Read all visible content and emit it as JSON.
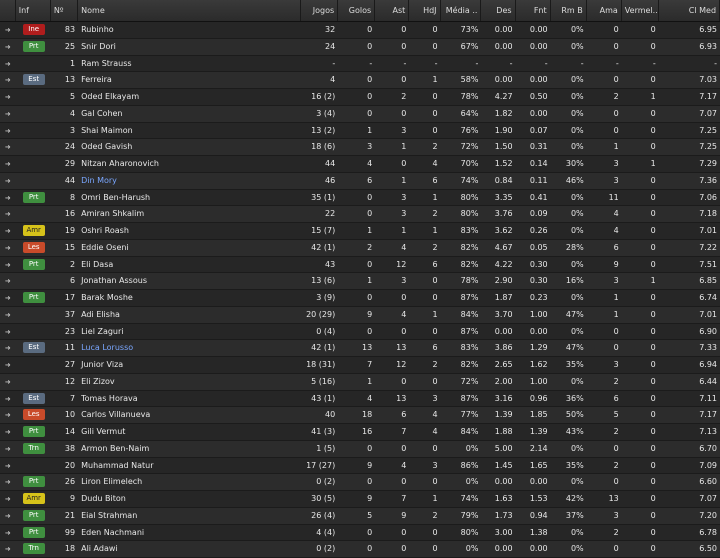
{
  "columns": {
    "inf": "Inf",
    "num": "Nº",
    "name": "Nome",
    "jogos": "Jogos",
    "golos": "Golos",
    "ast": "Ast",
    "hdj": "HdJ",
    "media": "Média ..",
    "des": "Des",
    "fnt": "Fnt",
    "rmb": "Rm B",
    "ama": "Ama",
    "vermel": "Vermel..",
    "clmed": "Cl Med"
  },
  "badge_colors": {
    "Ine": "#b01d1d",
    "Prt": "#3f8f3f",
    "Est": "#5a6b80",
    "Amr": "#d6c21a",
    "Les": "#c94b2a",
    "Trn": "#3f8f3f"
  },
  "rows": [
    {
      "inf": "Ine",
      "num": "83",
      "name": "Rubinho",
      "jogos": "32",
      "golos": "0",
      "ast": "0",
      "hdj": "0",
      "media": "73%",
      "des": "0.00",
      "fnt": "0.00",
      "rmb": "0%",
      "ama": "0",
      "ver": "0",
      "cl": "6.95",
      "link": false
    },
    {
      "inf": "Prt",
      "num": "25",
      "name": "Snir Dori",
      "jogos": "24",
      "golos": "0",
      "ast": "0",
      "hdj": "0",
      "media": "67%",
      "des": "0.00",
      "fnt": "0.00",
      "rmb": "0%",
      "ama": "0",
      "ver": "0",
      "cl": "6.93",
      "link": false
    },
    {
      "inf": "",
      "num": "1",
      "name": "Ram Strauss",
      "jogos": "-",
      "golos": "-",
      "ast": "-",
      "hdj": "-",
      "media": "-",
      "des": "-",
      "fnt": "-",
      "rmb": "-",
      "ama": "-",
      "ver": "-",
      "cl": "-",
      "link": false
    },
    {
      "inf": "Est",
      "num": "13",
      "name": "Ferreira",
      "jogos": "4",
      "golos": "0",
      "ast": "0",
      "hdj": "1",
      "media": "58%",
      "des": "0.00",
      "fnt": "0.00",
      "rmb": "0%",
      "ama": "0",
      "ver": "0",
      "cl": "7.03",
      "link": false
    },
    {
      "inf": "",
      "num": "5",
      "name": "Oded Elkayam",
      "jogos": "16 (2)",
      "golos": "0",
      "ast": "2",
      "hdj": "0",
      "media": "78%",
      "des": "4.27",
      "fnt": "0.50",
      "rmb": "0%",
      "ama": "2",
      "ver": "1",
      "cl": "7.17",
      "link": false
    },
    {
      "inf": "",
      "num": "4",
      "name": "Gal Cohen",
      "jogos": "3 (4)",
      "golos": "0",
      "ast": "0",
      "hdj": "0",
      "media": "64%",
      "des": "1.82",
      "fnt": "0.00",
      "rmb": "0%",
      "ama": "0",
      "ver": "0",
      "cl": "7.07",
      "link": false
    },
    {
      "inf": "",
      "num": "3",
      "name": "Shai Maimon",
      "jogos": "13 (2)",
      "golos": "1",
      "ast": "3",
      "hdj": "0",
      "media": "76%",
      "des": "1.90",
      "fnt": "0.07",
      "rmb": "0%",
      "ama": "0",
      "ver": "0",
      "cl": "7.25",
      "link": false
    },
    {
      "inf": "",
      "num": "24",
      "name": "Oded Gavish",
      "jogos": "18 (6)",
      "golos": "3",
      "ast": "1",
      "hdj": "2",
      "media": "72%",
      "des": "1.50",
      "fnt": "0.31",
      "rmb": "0%",
      "ama": "1",
      "ver": "0",
      "cl": "7.25",
      "link": false
    },
    {
      "inf": "",
      "num": "29",
      "name": "Nitzan Aharonovich",
      "jogos": "44",
      "golos": "4",
      "ast": "0",
      "hdj": "4",
      "media": "70%",
      "des": "1.52",
      "fnt": "0.14",
      "rmb": "30%",
      "ama": "3",
      "ver": "1",
      "cl": "7.29",
      "link": false
    },
    {
      "inf": "",
      "num": "44",
      "name": "Din Mory",
      "jogos": "46",
      "golos": "6",
      "ast": "1",
      "hdj": "6",
      "media": "74%",
      "des": "0.84",
      "fnt": "0.11",
      "rmb": "46%",
      "ama": "3",
      "ver": "0",
      "cl": "7.36",
      "link": true
    },
    {
      "inf": "Prt",
      "num": "8",
      "name": "Omri Ben-Harush",
      "jogos": "35 (1)",
      "golos": "0",
      "ast": "3",
      "hdj": "1",
      "media": "80%",
      "des": "3.35",
      "fnt": "0.41",
      "rmb": "0%",
      "ama": "11",
      "ver": "0",
      "cl": "7.06",
      "link": false
    },
    {
      "inf": "",
      "num": "16",
      "name": "Amiran Shkalim",
      "jogos": "22",
      "golos": "0",
      "ast": "3",
      "hdj": "2",
      "media": "80%",
      "des": "3.76",
      "fnt": "0.09",
      "rmb": "0%",
      "ama": "4",
      "ver": "0",
      "cl": "7.18",
      "link": false
    },
    {
      "inf": "Amr",
      "num": "19",
      "name": "Oshri Roash",
      "jogos": "15 (7)",
      "golos": "1",
      "ast": "1",
      "hdj": "1",
      "media": "83%",
      "des": "3.62",
      "fnt": "0.26",
      "rmb": "0%",
      "ama": "4",
      "ver": "0",
      "cl": "7.01",
      "link": false
    },
    {
      "inf": "Les",
      "num": "15",
      "name": "Eddie Oseni",
      "jogos": "42 (1)",
      "golos": "2",
      "ast": "4",
      "hdj": "2",
      "media": "82%",
      "des": "4.67",
      "fnt": "0.05",
      "rmb": "28%",
      "ama": "6",
      "ver": "0",
      "cl": "7.22",
      "link": false
    },
    {
      "inf": "Prt",
      "num": "2",
      "name": "Eli Dasa",
      "jogos": "43",
      "golos": "0",
      "ast": "12",
      "hdj": "6",
      "media": "82%",
      "des": "4.22",
      "fnt": "0.30",
      "rmb": "0%",
      "ama": "9",
      "ver": "0",
      "cl": "7.51",
      "link": false
    },
    {
      "inf": "",
      "num": "6",
      "name": "Jonathan Assous",
      "jogos": "13 (6)",
      "golos": "1",
      "ast": "3",
      "hdj": "0",
      "media": "78%",
      "des": "2.90",
      "fnt": "0.30",
      "rmb": "16%",
      "ama": "3",
      "ver": "1",
      "cl": "6.85",
      "link": false
    },
    {
      "inf": "Prt",
      "num": "17",
      "name": "Barak Moshe",
      "jogos": "3 (9)",
      "golos": "0",
      "ast": "0",
      "hdj": "0",
      "media": "87%",
      "des": "1.87",
      "fnt": "0.23",
      "rmb": "0%",
      "ama": "1",
      "ver": "0",
      "cl": "6.74",
      "link": false
    },
    {
      "inf": "",
      "num": "37",
      "name": "Adi Elisha",
      "jogos": "20 (29)",
      "golos": "9",
      "ast": "4",
      "hdj": "1",
      "media": "84%",
      "des": "3.70",
      "fnt": "1.00",
      "rmb": "47%",
      "ama": "1",
      "ver": "0",
      "cl": "7.01",
      "link": false
    },
    {
      "inf": "",
      "num": "23",
      "name": "Liel Zaguri",
      "jogos": "0 (4)",
      "golos": "0",
      "ast": "0",
      "hdj": "0",
      "media": "87%",
      "des": "0.00",
      "fnt": "0.00",
      "rmb": "0%",
      "ama": "0",
      "ver": "0",
      "cl": "6.90",
      "link": false
    },
    {
      "inf": "Est",
      "num": "11",
      "name": "Luca Lorusso",
      "jogos": "42 (1)",
      "golos": "13",
      "ast": "13",
      "hdj": "6",
      "media": "83%",
      "des": "3.86",
      "fnt": "1.29",
      "rmb": "47%",
      "ama": "0",
      "ver": "0",
      "cl": "7.33",
      "link": true
    },
    {
      "inf": "",
      "num": "27",
      "name": "Junior Viza",
      "jogos": "18 (31)",
      "golos": "7",
      "ast": "12",
      "hdj": "2",
      "media": "82%",
      "des": "2.65",
      "fnt": "1.62",
      "rmb": "35%",
      "ama": "3",
      "ver": "0",
      "cl": "6.94",
      "link": false
    },
    {
      "inf": "",
      "num": "12",
      "name": "Eli Zizov",
      "jogos": "5 (16)",
      "golos": "1",
      "ast": "0",
      "hdj": "0",
      "media": "72%",
      "des": "2.00",
      "fnt": "1.00",
      "rmb": "0%",
      "ama": "2",
      "ver": "0",
      "cl": "6.44",
      "link": false
    },
    {
      "inf": "Est",
      "num": "7",
      "name": "Tomas Horava",
      "jogos": "43 (1)",
      "golos": "4",
      "ast": "13",
      "hdj": "3",
      "media": "87%",
      "des": "3.16",
      "fnt": "0.96",
      "rmb": "36%",
      "ama": "6",
      "ver": "0",
      "cl": "7.11",
      "link": false
    },
    {
      "inf": "Les",
      "num": "10",
      "name": "Carlos Villanueva",
      "jogos": "40",
      "golos": "18",
      "ast": "6",
      "hdj": "4",
      "media": "77%",
      "des": "1.39",
      "fnt": "1.85",
      "rmb": "50%",
      "ama": "5",
      "ver": "0",
      "cl": "7.17",
      "link": false
    },
    {
      "inf": "Prt",
      "num": "14",
      "name": "Gili Vermut",
      "jogos": "41 (3)",
      "golos": "16",
      "ast": "7",
      "hdj": "4",
      "media": "84%",
      "des": "1.88",
      "fnt": "1.39",
      "rmb": "43%",
      "ama": "2",
      "ver": "0",
      "cl": "7.13",
      "link": false
    },
    {
      "inf": "Trn",
      "num": "38",
      "name": "Armon Ben-Naim",
      "jogos": "1 (5)",
      "golos": "0",
      "ast": "0",
      "hdj": "0",
      "media": "0%",
      "des": "5.00",
      "fnt": "2.14",
      "rmb": "0%",
      "ama": "0",
      "ver": "0",
      "cl": "6.70",
      "link": false
    },
    {
      "inf": "",
      "num": "20",
      "name": "Muhammad Natur",
      "jogos": "17 (27)",
      "golos": "9",
      "ast": "4",
      "hdj": "3",
      "media": "86%",
      "des": "1.45",
      "fnt": "1.65",
      "rmb": "35%",
      "ama": "2",
      "ver": "0",
      "cl": "7.09",
      "link": false
    },
    {
      "inf": "Prt",
      "num": "26",
      "name": "Liron Elimelech",
      "jogos": "0 (2)",
      "golos": "0",
      "ast": "0",
      "hdj": "0",
      "media": "0%",
      "des": "0.00",
      "fnt": "0.00",
      "rmb": "0%",
      "ama": "0",
      "ver": "0",
      "cl": "6.60",
      "link": false
    },
    {
      "inf": "Amr",
      "num": "9",
      "name": "Dudu Biton",
      "jogos": "30 (5)",
      "golos": "9",
      "ast": "7",
      "hdj": "1",
      "media": "74%",
      "des": "1.63",
      "fnt": "1.53",
      "rmb": "42%",
      "ama": "13",
      "ver": "0",
      "cl": "7.07",
      "link": false
    },
    {
      "inf": "Prt",
      "num": "21",
      "name": "Eial Strahman",
      "jogos": "26 (4)",
      "golos": "5",
      "ast": "9",
      "hdj": "2",
      "media": "79%",
      "des": "1.73",
      "fnt": "0.94",
      "rmb": "37%",
      "ama": "3",
      "ver": "0",
      "cl": "7.20",
      "link": false
    },
    {
      "inf": "Prt",
      "num": "99",
      "name": "Eden Nachmani",
      "jogos": "4 (4)",
      "golos": "0",
      "ast": "0",
      "hdj": "0",
      "media": "80%",
      "des": "3.00",
      "fnt": "1.38",
      "rmb": "0%",
      "ama": "2",
      "ver": "0",
      "cl": "6.78",
      "link": false
    },
    {
      "inf": "Trn",
      "num": "18",
      "name": "Ali Adawi",
      "jogos": "0 (2)",
      "golos": "0",
      "ast": "0",
      "hdj": "0",
      "media": "0%",
      "des": "0.00",
      "fnt": "0.00",
      "rmb": "0%",
      "ama": "0",
      "ver": "0",
      "cl": "6.50",
      "link": false
    }
  ]
}
